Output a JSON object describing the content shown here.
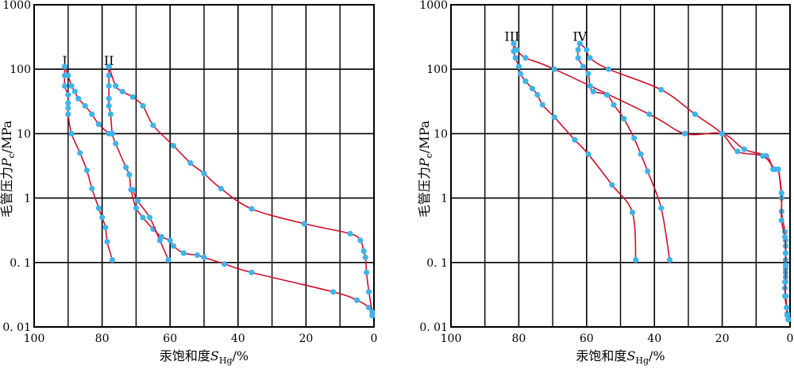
{
  "colors": {
    "curve": "#d0102a",
    "marker": "#3fb4ea",
    "grid": "#000000"
  },
  "chart_data": [
    {
      "type": "line",
      "title": "",
      "xlabel": {
        "prefix": "汞饱和度",
        "var": "S",
        "sub": "Hg",
        "suffix": "/%"
      },
      "ylabel": {
        "prefix": "毛管压力",
        "var": "P",
        "sub": "c",
        "suffix": "/MPa"
      },
      "x_reversed": true,
      "xlim": [
        100,
        0
      ],
      "ylim": [
        0.01,
        1000
      ],
      "y_scale": "log",
      "grid": true,
      "x_ticks": [
        {
          "value": 100,
          "label": "100"
        },
        {
          "value": 80,
          "label": "80"
        },
        {
          "value": 60,
          "label": "60"
        },
        {
          "value": 40,
          "label": "40"
        },
        {
          "value": 20,
          "label": "20"
        },
        {
          "value": 0,
          "label": "0"
        }
      ],
      "y_ticks": [
        {
          "value": 0.01,
          "label": "0. 01"
        },
        {
          "value": 0.1,
          "label": "0. 1"
        },
        {
          "value": 1,
          "label": "1"
        },
        {
          "value": 10,
          "label": "10"
        },
        {
          "value": 100,
          "label": "100"
        },
        {
          "value": 1000,
          "label": "1000"
        }
      ],
      "series": [
        {
          "name": "I",
          "label_at": [
            91,
            130
          ],
          "points": [
            [
              77,
              0.11
            ],
            [
              78.5,
              0.21
            ],
            [
              79,
              0.35
            ],
            [
              80,
              0.5
            ],
            [
              81,
              0.7
            ],
            [
              83,
              1.4
            ],
            [
              84.5,
              2.7
            ],
            [
              86.5,
              5
            ],
            [
              89,
              10
            ],
            [
              90,
              20
            ],
            [
              90,
              25
            ],
            [
              90,
              30
            ],
            [
              90,
              40
            ],
            [
              91,
              55
            ],
            [
              91,
              80
            ],
            [
              91,
              110
            ]
          ]
        },
        {
          "name": "I-withdrawal",
          "points": [
            [
              91,
              110
            ],
            [
              90,
              80
            ],
            [
              89,
              55
            ],
            [
              88,
              45
            ],
            [
              87,
              35
            ],
            [
              85,
              27
            ],
            [
              83,
              20
            ],
            [
              81,
              14
            ],
            [
              78,
              10
            ]
          ]
        },
        {
          "name": "II",
          "label_at": [
            78,
            130
          ],
          "points": [
            [
              78,
              110
            ],
            [
              78,
              80
            ],
            [
              78,
              55
            ],
            [
              78,
              35
            ],
            [
              78,
              27
            ],
            [
              77.5,
              20
            ],
            [
              77,
              10
            ],
            [
              76,
              7
            ],
            [
              73,
              3
            ],
            [
              72,
              2.3
            ],
            [
              71.5,
              1.35
            ],
            [
              70,
              0.7
            ],
            [
              68,
              0.5
            ],
            [
              65,
              0.33
            ],
            [
              62.5,
              0.25
            ],
            [
              60,
              0.22
            ],
            [
              59,
              0.18
            ],
            [
              56,
              0.14
            ],
            [
              52,
              0.13
            ],
            [
              50,
              0.12
            ],
            [
              44,
              0.095
            ],
            [
              36,
              0.07
            ],
            [
              12,
              0.035
            ],
            [
              5,
              0.026
            ],
            [
              1.5,
              0.02
            ],
            [
              0.5,
              0.015
            ]
          ]
        },
        {
          "name": "II-withdrawal",
          "points": [
            [
              78,
              110
            ],
            [
              76,
              55
            ],
            [
              74,
              45
            ],
            [
              71,
              37
            ],
            [
              68,
              27
            ],
            [
              65,
              13.5
            ],
            [
              59,
              6.5
            ],
            [
              54,
              3.5
            ],
            [
              50,
              2.4
            ],
            [
              45,
              1.4
            ],
            [
              36,
              0.68
            ],
            [
              20.5,
              0.4
            ],
            [
              7,
              0.28
            ],
            [
              4,
              0.22
            ],
            [
              3,
              0.15
            ],
            [
              2.5,
              0.12
            ],
            [
              2.2,
              0.07
            ],
            [
              1.5,
              0.035
            ],
            [
              0.5,
              0.017
            ]
          ]
        },
        {
          "name": "II-reverse",
          "points": [
            [
              71,
              1.35
            ],
            [
              69.5,
              0.9
            ],
            [
              66,
              0.5
            ],
            [
              63,
              0.22
            ],
            [
              60.5,
              0.11
            ]
          ]
        }
      ]
    },
    {
      "type": "line",
      "title": "",
      "xlabel": {
        "prefix": "汞饱和度",
        "var": "S",
        "sub": "Hg",
        "suffix": "/%"
      },
      "ylabel": {
        "prefix": "毛管压力",
        "var": "P",
        "sub": "c",
        "suffix": "/MPa"
      },
      "x_reversed": true,
      "xlim": [
        100,
        0
      ],
      "ylim": [
        0.01,
        1000
      ],
      "y_scale": "log",
      "grid": true,
      "x_ticks": [
        {
          "value": 100,
          "label": "100"
        },
        {
          "value": 80,
          "label": "80"
        },
        {
          "value": 60,
          "label": "60"
        },
        {
          "value": 40,
          "label": "40"
        },
        {
          "value": 20,
          "label": "20"
        },
        {
          "value": 0,
          "label": "0"
        }
      ],
      "y_ticks": [
        {
          "value": 0.01,
          "label": "0. 01"
        },
        {
          "value": 0.1,
          "label": "0. 1"
        },
        {
          "value": 1,
          "label": "1"
        },
        {
          "value": 10,
          "label": "10"
        },
        {
          "value": 100,
          "label": "100"
        },
        {
          "value": 1000,
          "label": "1000"
        }
      ],
      "series": [
        {
          "name": "III",
          "label_at": [
            82,
            310
          ],
          "points": [
            [
              45.5,
              0.11
            ],
            [
              46.5,
              0.6
            ],
            [
              52.5,
              1.6
            ],
            [
              59.5,
              4.8
            ],
            [
              63.5,
              8
            ],
            [
              69.5,
              18
            ],
            [
              73,
              28
            ],
            [
              74.5,
              40
            ],
            [
              76,
              50
            ],
            [
              78,
              65
            ],
            [
              79.5,
              85
            ],
            [
              80,
              110
            ],
            [
              81,
              150
            ],
            [
              81.5,
              190
            ],
            [
              81.5,
              250
            ]
          ]
        },
        {
          "name": "III-withdrawal",
          "points": [
            [
              81.5,
              250
            ],
            [
              80.5,
              200
            ],
            [
              78,
              150
            ],
            [
              69.5,
              100
            ],
            [
              41.5,
              20
            ],
            [
              31,
              10
            ],
            [
              20,
              10
            ],
            [
              13.5,
              5.7
            ],
            [
              7,
              4.5
            ],
            [
              5,
              2.8
            ],
            [
              3.5,
              2.8
            ],
            [
              2.5,
              1
            ],
            [
              2.5,
              0.62
            ],
            [
              1.5,
              0.3
            ],
            [
              1.3,
              0.22
            ],
            [
              1.3,
              0.18
            ],
            [
              1.3,
              0.14
            ],
            [
              1.3,
              0.11
            ],
            [
              1.3,
              0.08
            ],
            [
              1.3,
              0.07
            ],
            [
              1.3,
              0.06
            ],
            [
              1.5,
              0.05
            ],
            [
              1.5,
              0.04
            ],
            [
              1.2,
              0.03
            ],
            [
              1,
              0.02
            ],
            [
              0.8,
              0.016
            ],
            [
              0.5,
              0.013
            ]
          ]
        },
        {
          "name": "IV",
          "label_at": [
            62,
            310
          ],
          "points": [
            [
              35.5,
              0.11
            ],
            [
              38,
              0.7
            ],
            [
              42,
              2.6
            ],
            [
              44,
              4.8
            ],
            [
              46,
              8.5
            ],
            [
              49,
              17
            ],
            [
              52,
              28
            ],
            [
              54,
              40
            ],
            [
              58,
              45
            ],
            [
              59,
              55
            ],
            [
              59.5,
              85
            ],
            [
              61,
              110
            ],
            [
              62.5,
              150
            ],
            [
              62.5,
              200
            ],
            [
              62,
              250
            ]
          ]
        },
        {
          "name": "IV-withdrawal",
          "points": [
            [
              62,
              250
            ],
            [
              60,
              200
            ],
            [
              59,
              150
            ],
            [
              53.5,
              100
            ],
            [
              38,
              48
            ],
            [
              28,
              20
            ],
            [
              20,
              10
            ],
            [
              15.5,
              5.3
            ],
            [
              8,
              4.5
            ],
            [
              4.5,
              2.8
            ],
            [
              3.5,
              2.8
            ],
            [
              2.5,
              1.2
            ],
            [
              2.5,
              0.45
            ],
            [
              1.5,
              0.25
            ],
            [
              1.3,
              0.14
            ],
            [
              1.3,
              0.09
            ],
            [
              1.3,
              0.05
            ],
            [
              1.5,
              0.03
            ],
            [
              1,
              0.02
            ],
            [
              0.8,
              0.015
            ],
            [
              0.5,
              0.013
            ]
          ]
        }
      ]
    }
  ]
}
